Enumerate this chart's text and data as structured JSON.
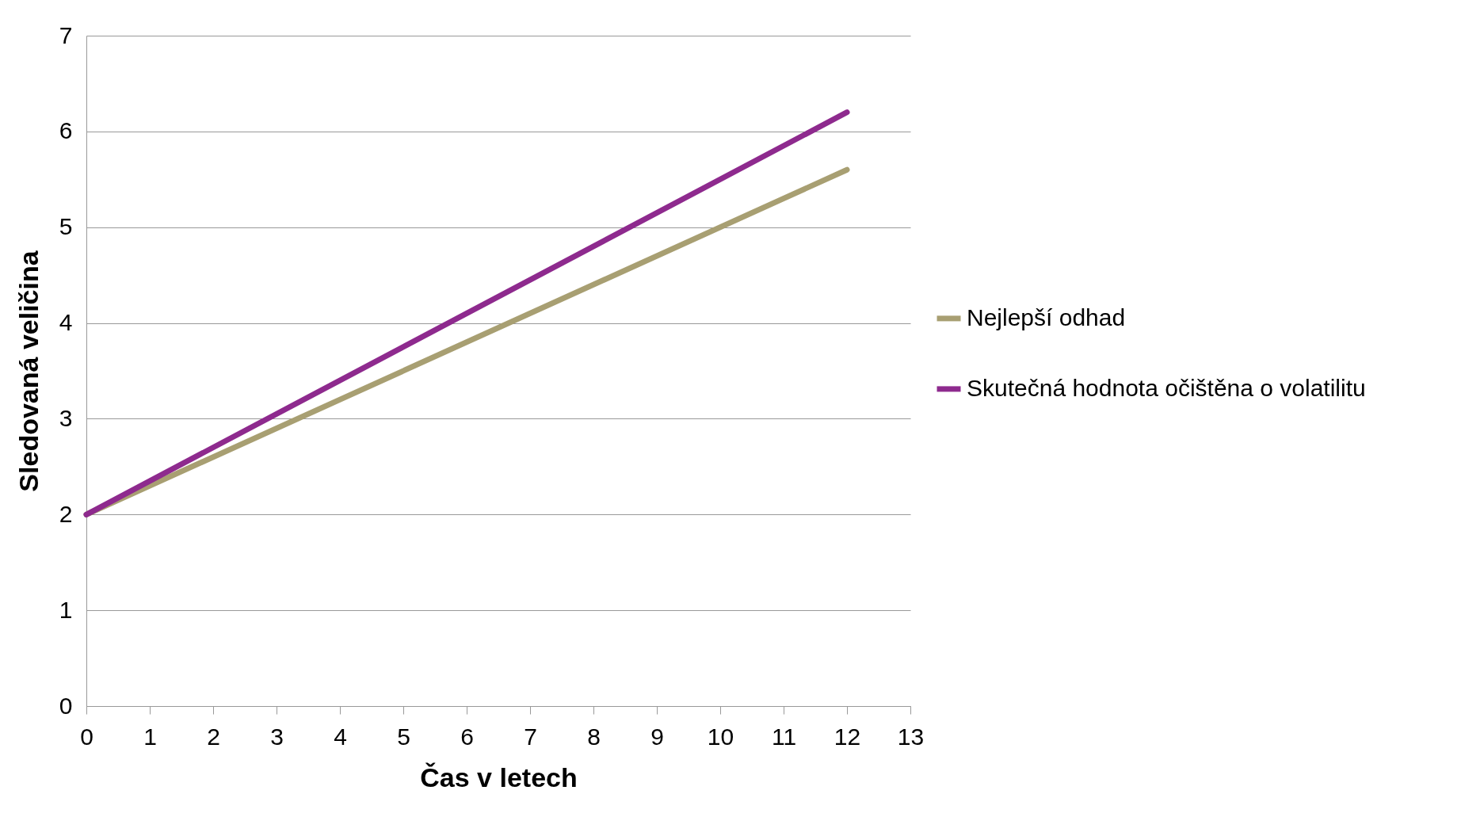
{
  "chart_data": {
    "type": "line",
    "xlabel": "Čas v letech",
    "ylabel": "Sledovaná veličina",
    "x": [
      0,
      12
    ],
    "series": [
      {
        "name": "Nejlepší odhad",
        "color": "#a89f72",
        "values": [
          2,
          5.6
        ]
      },
      {
        "name": "Skutečná hodnota očištěna o volatilitu",
        "color": "#8e2a8e",
        "values": [
          2,
          6.2
        ]
      }
    ],
    "xlim": [
      0,
      13
    ],
    "xticks": [
      0,
      1,
      2,
      3,
      4,
      5,
      6,
      7,
      8,
      9,
      10,
      11,
      12,
      13
    ],
    "ylim": [
      0,
      7
    ],
    "yticks": [
      0,
      1,
      2,
      3,
      4,
      5,
      6,
      7
    ],
    "grid": "y",
    "legend": "right",
    "marker": "none",
    "line_style": "solid"
  }
}
